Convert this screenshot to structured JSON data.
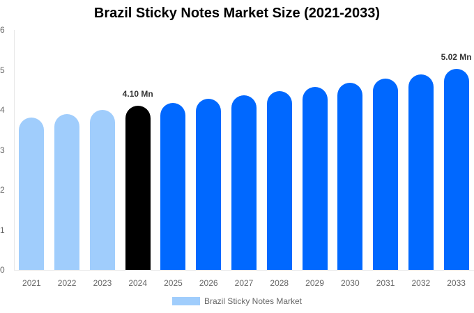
{
  "chart_data": {
    "type": "bar",
    "title": "Brazil Sticky Notes Market Size (2021-2033)",
    "xlabel": "",
    "ylabel": "",
    "ylim": [
      0,
      6
    ],
    "yticks": [
      "0",
      "1",
      "2",
      "3",
      "4",
      "5",
      "6"
    ],
    "grid": false,
    "legend_position": "bottom",
    "categories": [
      "2021",
      "2022",
      "2023",
      "2024",
      "2025",
      "2026",
      "2027",
      "2028",
      "2029",
      "2030",
      "2031",
      "2032",
      "2033"
    ],
    "series": [
      {
        "name": "Brazil Sticky Notes Market",
        "values": [
          3.81,
          3.9,
          4.0,
          4.1,
          4.18,
          4.27,
          4.37,
          4.47,
          4.57,
          4.67,
          4.78,
          4.89,
          5.02
        ],
        "colors": [
          "#a0cdfc",
          "#a0cdfc",
          "#a0cdfc",
          "#000000",
          "#0068ff",
          "#0068ff",
          "#0068ff",
          "#0068ff",
          "#0068ff",
          "#0068ff",
          "#0068ff",
          "#0068ff",
          "#0068ff"
        ]
      }
    ],
    "annotations": [
      {
        "category": "2024",
        "text": "4.10 Mn"
      },
      {
        "category": "2033",
        "text": "5.02 Mn"
      }
    ]
  },
  "legend": {
    "label": "Brazil Sticky Notes Market",
    "color": "#a0cdfc"
  }
}
